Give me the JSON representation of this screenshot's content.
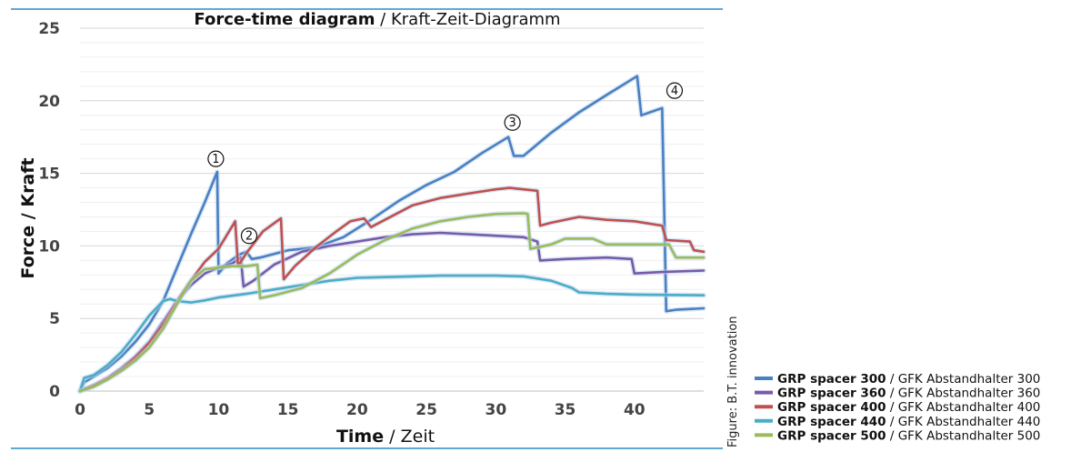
{
  "chart_data": {
    "type": "line",
    "title": {
      "bold": "Force-time diagram",
      "sep": " / ",
      "normal": "Kraft-Zeit-Diagramm"
    },
    "xlabel": {
      "bold": "Time",
      "sep": " / ",
      "normal": "Zeit"
    },
    "ylabel": "Force / Kraft",
    "xlim": [
      0,
      45
    ],
    "ylim": [
      0,
      25
    ],
    "x_ticks": [
      0,
      5,
      10,
      15,
      20,
      25,
      30,
      35,
      40
    ],
    "y_ticks": [
      0,
      5,
      10,
      15,
      20,
      25
    ],
    "grid": "horizontal",
    "legend_position": "bottom-right",
    "credit": "Figure: B.T. innovation",
    "markers": [
      {
        "label": "①",
        "x": 9.8,
        "y": 16.0
      },
      {
        "label": "②",
        "x": 12.2,
        "y": 10.7
      },
      {
        "label": "③",
        "x": 31.2,
        "y": 18.5
      },
      {
        "label": "④",
        "x": 42.9,
        "y": 20.7
      }
    ],
    "series": [
      {
        "name_bold": "GRP spacer 300",
        "name_normal": "GFK Abstandhalter 300",
        "color": "#4a7fc1",
        "points": [
          [
            0,
            0
          ],
          [
            0.3,
            0.6
          ],
          [
            1,
            1.0
          ],
          [
            2,
            1.6
          ],
          [
            3,
            2.4
          ],
          [
            4,
            3.4
          ],
          [
            5,
            4.6
          ],
          [
            6,
            6.2
          ],
          [
            7,
            8.5
          ],
          [
            8,
            10.8
          ],
          [
            9,
            13.0
          ],
          [
            9.9,
            15.1
          ],
          [
            10.0,
            8.1
          ],
          [
            10.6,
            8.8
          ],
          [
            11.5,
            9.4
          ],
          [
            12.0,
            9.6
          ],
          [
            12.4,
            9.1
          ],
          [
            13,
            9.2
          ],
          [
            15,
            9.7
          ],
          [
            17,
            9.9
          ],
          [
            19,
            10.6
          ],
          [
            21,
            11.8
          ],
          [
            23,
            13.1
          ],
          [
            25,
            14.2
          ],
          [
            27,
            15.1
          ],
          [
            29,
            16.4
          ],
          [
            30.9,
            17.5
          ],
          [
            31.3,
            16.2
          ],
          [
            32,
            16.2
          ],
          [
            34,
            17.8
          ],
          [
            36,
            19.2
          ],
          [
            38,
            20.4
          ],
          [
            40.2,
            21.7
          ],
          [
            40.5,
            19.0
          ],
          [
            41.4,
            19.3
          ],
          [
            42.0,
            19.5
          ],
          [
            42.3,
            5.5
          ],
          [
            43,
            5.6
          ],
          [
            45,
            5.7
          ]
        ]
      },
      {
        "name_bold": "GRP spacer 360",
        "name_normal": "GFK Abstandhalter 360",
        "color": "#7a5aa8",
        "points": [
          [
            0,
            0
          ],
          [
            1,
            0.4
          ],
          [
            2,
            0.9
          ],
          [
            3,
            1.6
          ],
          [
            4,
            2.4
          ],
          [
            5,
            3.4
          ],
          [
            6,
            4.8
          ],
          [
            7,
            6.2
          ],
          [
            8,
            7.3
          ],
          [
            9,
            8.1
          ],
          [
            10,
            8.5
          ],
          [
            11,
            8.8
          ],
          [
            11.6,
            9.2
          ],
          [
            11.8,
            7.2
          ],
          [
            12.5,
            7.6
          ],
          [
            14,
            8.7
          ],
          [
            16,
            9.6
          ],
          [
            18,
            10.0
          ],
          [
            20,
            10.3
          ],
          [
            22,
            10.6
          ],
          [
            24,
            10.8
          ],
          [
            26,
            10.9
          ],
          [
            28,
            10.8
          ],
          [
            30,
            10.7
          ],
          [
            32,
            10.6
          ],
          [
            33,
            10.3
          ],
          [
            33.2,
            9.0
          ],
          [
            35,
            9.1
          ],
          [
            38,
            9.2
          ],
          [
            39.8,
            9.1
          ],
          [
            40.0,
            8.1
          ],
          [
            42,
            8.2
          ],
          [
            45,
            8.3
          ]
        ]
      },
      {
        "name_bold": "GRP spacer 400",
        "name_normal": "GFK Abstandhalter 400",
        "color": "#c0504d",
        "points": [
          [
            0,
            0
          ],
          [
            1,
            0.4
          ],
          [
            2,
            0.9
          ],
          [
            3,
            1.5
          ],
          [
            4,
            2.3
          ],
          [
            5,
            3.3
          ],
          [
            6,
            4.6
          ],
          [
            7,
            6.2
          ],
          [
            8,
            7.6
          ],
          [
            9,
            8.9
          ],
          [
            10,
            9.8
          ],
          [
            11.2,
            11.7
          ],
          [
            11.4,
            8.6
          ],
          [
            12,
            9.5
          ],
          [
            13.2,
            11.0
          ],
          [
            14.5,
            11.9
          ],
          [
            14.7,
            7.7
          ],
          [
            15.5,
            8.6
          ],
          [
            17,
            9.9
          ],
          [
            18.5,
            11.0
          ],
          [
            19.5,
            11.7
          ],
          [
            20.5,
            11.9
          ],
          [
            21,
            11.3
          ],
          [
            22,
            11.8
          ],
          [
            24,
            12.8
          ],
          [
            26,
            13.3
          ],
          [
            28,
            13.6
          ],
          [
            30,
            13.9
          ],
          [
            31,
            14.0
          ],
          [
            32,
            13.9
          ],
          [
            33,
            13.8
          ],
          [
            33.2,
            11.4
          ],
          [
            34,
            11.6
          ],
          [
            36,
            12.0
          ],
          [
            38,
            11.8
          ],
          [
            40,
            11.7
          ],
          [
            42,
            11.4
          ],
          [
            42.3,
            10.4
          ],
          [
            44,
            10.3
          ],
          [
            44.3,
            9.7
          ],
          [
            45,
            9.6
          ]
        ]
      },
      {
        "name_bold": "GRP spacer 440",
        "name_normal": "GFK Abstandhalter 440",
        "color": "#4bacc6",
        "points": [
          [
            0,
            0
          ],
          [
            0.3,
            0.9
          ],
          [
            1,
            1.1
          ],
          [
            2,
            1.8
          ],
          [
            3,
            2.7
          ],
          [
            4,
            3.9
          ],
          [
            5,
            5.2
          ],
          [
            6,
            6.2
          ],
          [
            6.5,
            6.35
          ],
          [
            7,
            6.2
          ],
          [
            8,
            6.1
          ],
          [
            9,
            6.25
          ],
          [
            10,
            6.45
          ],
          [
            12,
            6.7
          ],
          [
            14,
            7.0
          ],
          [
            16,
            7.3
          ],
          [
            18,
            7.6
          ],
          [
            20,
            7.8
          ],
          [
            22,
            7.85
          ],
          [
            24,
            7.9
          ],
          [
            26,
            7.95
          ],
          [
            28,
            7.95
          ],
          [
            30,
            7.95
          ],
          [
            32,
            7.9
          ],
          [
            34,
            7.6
          ],
          [
            35.5,
            7.1
          ],
          [
            36,
            6.8
          ],
          [
            38,
            6.7
          ],
          [
            40,
            6.65
          ],
          [
            45,
            6.6
          ]
        ]
      },
      {
        "name_bold": "GRP spacer 500",
        "name_normal": "GFK Abstandhalter 500",
        "color": "#9bbb59",
        "points": [
          [
            0,
            0
          ],
          [
            1,
            0.3
          ],
          [
            2,
            0.8
          ],
          [
            3,
            1.4
          ],
          [
            4,
            2.1
          ],
          [
            5,
            3.0
          ],
          [
            6,
            4.3
          ],
          [
            7,
            6.0
          ],
          [
            8,
            7.6
          ],
          [
            9,
            8.4
          ],
          [
            10,
            8.5
          ],
          [
            11,
            8.6
          ],
          [
            12,
            8.6
          ],
          [
            12.8,
            8.7
          ],
          [
            13.0,
            6.4
          ],
          [
            14,
            6.6
          ],
          [
            16,
            7.1
          ],
          [
            18,
            8.1
          ],
          [
            20,
            9.4
          ],
          [
            22,
            10.4
          ],
          [
            24,
            11.2
          ],
          [
            26,
            11.7
          ],
          [
            28,
            12.0
          ],
          [
            30,
            12.2
          ],
          [
            32,
            12.25
          ],
          [
            32.3,
            12.2
          ],
          [
            32.5,
            9.8
          ],
          [
            34,
            10.1
          ],
          [
            35,
            10.5
          ],
          [
            37,
            10.5
          ],
          [
            38,
            10.1
          ],
          [
            40,
            10.1
          ],
          [
            42.5,
            10.1
          ],
          [
            43,
            9.2
          ],
          [
            45,
            9.2
          ]
        ]
      }
    ]
  }
}
